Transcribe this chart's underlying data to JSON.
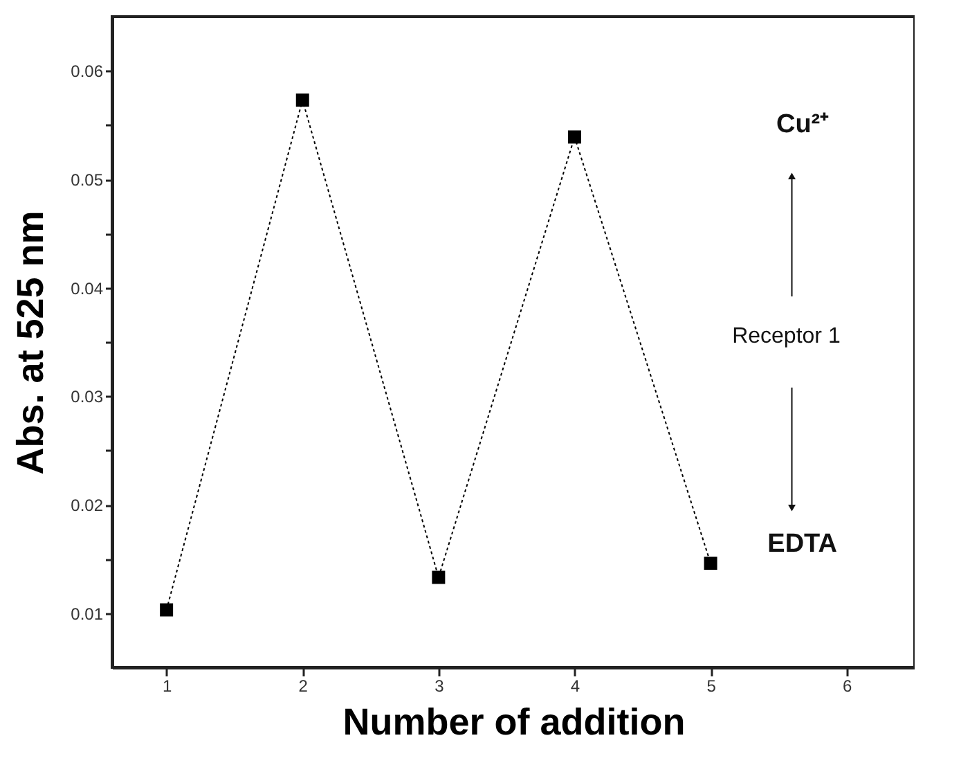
{
  "chart_data": {
    "type": "line",
    "xlabel": "Number of addition",
    "ylabel": "Abs. at 525 nm",
    "x": [
      1,
      2,
      3,
      4,
      5
    ],
    "series": [
      {
        "color": "#000000",
        "values": [
          0.0103,
          0.0573,
          0.0133,
          0.0539,
          0.0146
        ]
      }
    ],
    "marker": "square",
    "line_style": "dotted",
    "grid": false,
    "xlim": [
      0.6,
      6.5
    ],
    "xticks": [
      1,
      2,
      3,
      4,
      5,
      6
    ],
    "ylim": [
      0.005,
      0.065
    ],
    "yticks": [
      {
        "value": 0.01,
        "label": "0.01"
      },
      {
        "value": 0.015,
        "label": null
      },
      {
        "value": 0.02,
        "label": "0.02"
      },
      {
        "value": 0.025,
        "label": null
      },
      {
        "value": 0.03,
        "label": "0.03"
      },
      {
        "value": 0.035,
        "label": null
      },
      {
        "value": 0.04,
        "label": "0.04"
      },
      {
        "value": 0.045,
        "label": null
      },
      {
        "value": 0.05,
        "label": "0.05"
      },
      {
        "value": 0.055,
        "label": null
      },
      {
        "value": 0.06,
        "label": "0.06"
      }
    ],
    "annotations": [
      "Cu²⁺",
      "Receptor 1",
      "EDTA"
    ]
  }
}
